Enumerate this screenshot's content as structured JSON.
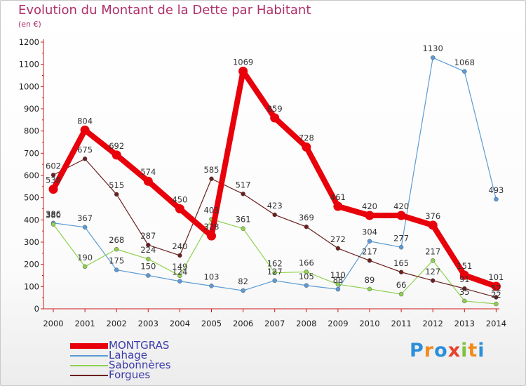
{
  "title": "Evolution du Montant de la Dette par Habitant",
  "subtitle": "(en €)",
  "brand": {
    "letters": [
      {
        "char": "P",
        "color": "#2b8fd9"
      },
      {
        "char": "r",
        "color": "#f28b1e"
      },
      {
        "char": "o",
        "color": "#2b8fd9"
      },
      {
        "char": "x",
        "color": "#e8412c"
      },
      {
        "char": "i",
        "color": "#7fc241"
      },
      {
        "char": "t",
        "color": "#f28b1e"
      },
      {
        "char": "i",
        "color": "#2b8fd9"
      }
    ]
  },
  "chart_data": {
    "type": "line",
    "x": [
      "2000",
      "2001",
      "2002",
      "2003",
      "2004",
      "2005",
      "2006",
      "2007",
      "2008",
      "2009",
      "2010",
      "2011",
      "2012",
      "2013",
      "2014"
    ],
    "yticks": [
      0,
      100,
      200,
      300,
      400,
      500,
      600,
      700,
      800,
      900,
      1000,
      1100,
      1200
    ],
    "ylim": [
      0,
      1200
    ],
    "grid": false,
    "legend_position": "bottom-left",
    "series": [
      {
        "name": "MONTGRAS",
        "color": "#e8000a",
        "values": [
          538,
          804,
          692,
          574,
          450,
          328,
          1069,
          859,
          728,
          461,
          420,
          420,
          376,
          151,
          101
        ]
      },
      {
        "name": "Lahage",
        "color": "#5b9bd5",
        "values": [
          386,
          367,
          175,
          150,
          124,
          103,
          82,
          127,
          105,
          88,
          304,
          277,
          1130,
          1068,
          493
        ]
      },
      {
        "name": "Sabonnères",
        "color": "#8fd14f",
        "values": [
          380,
          190,
          268,
          224,
          149,
          403,
          361,
          162,
          166,
          110,
          89,
          66,
          217,
          35,
          22
        ]
      },
      {
        "name": "Forgues",
        "color": "#6b1f1f",
        "values": [
          602,
          675,
          515,
          287,
          240,
          585,
          517,
          423,
          369,
          272,
          217,
          165,
          127,
          91,
          52
        ]
      }
    ]
  }
}
